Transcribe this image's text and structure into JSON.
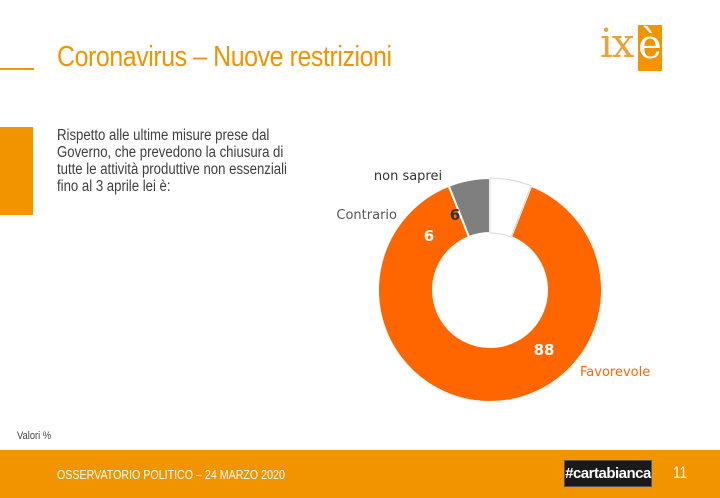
{
  "header": {
    "title": "Coronavirus – Nuove restrizioni",
    "logo_ix": "ix",
    "logo_e": "è"
  },
  "question": {
    "lines": [
      "Rispetto alle ultime misure prese dal",
      "Governo, che prevedono la chiusura di",
      "tutte le attività produttive non essenziali",
      "fino al 3 aprile lei è:"
    ]
  },
  "chart_data": {
    "type": "pie",
    "donut": true,
    "slices": [
      {
        "label": "Favorevole",
        "value": 88,
        "color": "#ff6600"
      },
      {
        "label": "Contrario",
        "value": 6,
        "color": "#7f7f7f"
      },
      {
        "label": "non saprei",
        "value": 6,
        "color": "#ffffff"
      }
    ],
    "unit": "%"
  },
  "footnote": "Valori %",
  "footer": {
    "text": "OSSERVATORIO POLITICO – 24 MARZO 2020",
    "badge": "#cartabianca",
    "page_number": "11"
  },
  "colors": {
    "accent": "#f29400",
    "favorevole": "#ff6600",
    "contrario": "#7f7f7f"
  }
}
